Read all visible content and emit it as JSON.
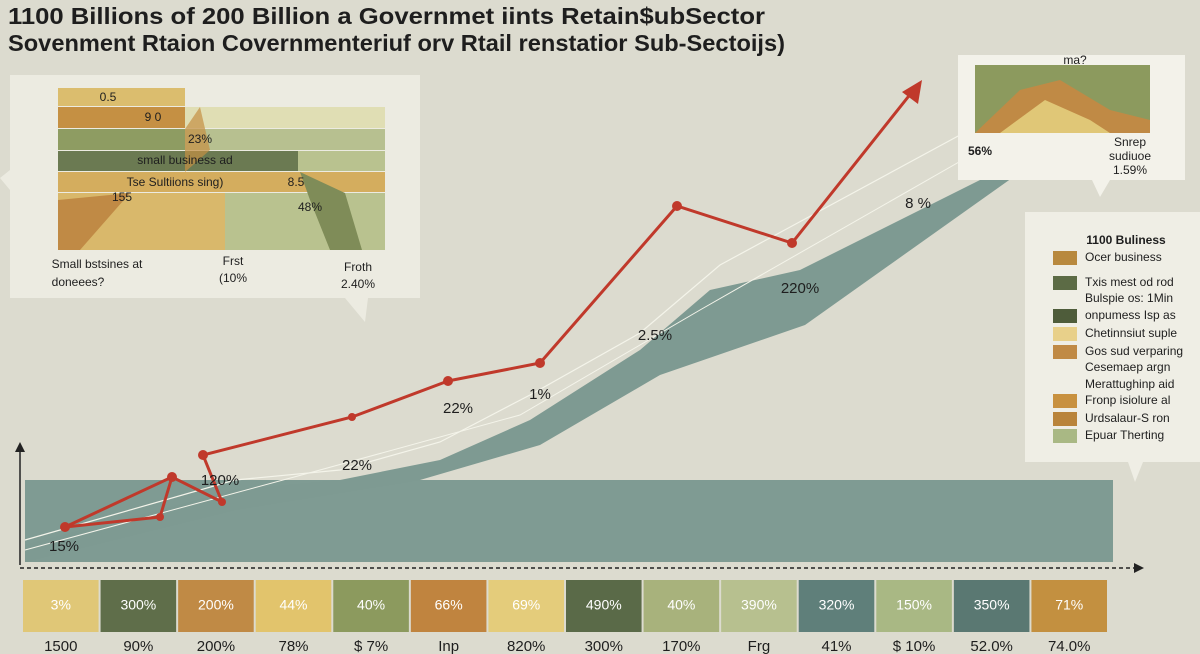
{
  "title": {
    "line1": "1100 Billions of 200 Billion a Governmet iints Retain$ubSector",
    "line2": "Sovenment Rtaion Covernmenteriuf orv Rtail renstatior Sub-Sectoijs)"
  },
  "left_panel": {
    "labels": [
      "0.5",
      "9 0",
      "23%",
      "small business ad",
      "Tse Sultiions sing)",
      "8.5",
      "155",
      "48%",
      "Small bstsines at",
      "doneees?",
      "Frst",
      "(10%",
      "Froth",
      "2.40%"
    ]
  },
  "right_panel": {
    "top": "ma?",
    "value": "56%",
    "notes": [
      "Snrep",
      "sudiuoe",
      "1.59%"
    ]
  },
  "chart_labels": [
    "8 %",
    "220%",
    "2.5%",
    "1%",
    "22%",
    "22%",
    "120%",
    "15%"
  ],
  "legend": {
    "title": "1100 Buliness",
    "items": [
      {
        "label": "Ocer business",
        "color": "#b8893e"
      },
      {
        "label": "Txis mest od rod",
        "color": "#5c6b45"
      },
      {
        "label": "Bulspie os: 1Min"
      },
      {
        "label": "onpumess Isp as",
        "color": "#4e5c3a"
      },
      {
        "label": "Chetinnsiut suple",
        "color": "#e8d08a"
      },
      {
        "label": "Gos sud verparing",
        "color": "#c08a45"
      },
      {
        "label": "Cesemaep argn"
      },
      {
        "label": "Merattughinp aid"
      },
      {
        "label": "Fronp isiolure al",
        "color": "#c8913f"
      },
      {
        "label": "Urdsalaur-S ron",
        "color": "#b9843a"
      },
      {
        "label": "Epuar Therting",
        "color": "#a9b884"
      }
    ]
  },
  "strip": {
    "cells": [
      {
        "label": "3%",
        "color": "#e0c777"
      },
      {
        "label": "300%",
        "color": "#5f6e4a"
      },
      {
        "label": "200%",
        "color": "#c08a45"
      },
      {
        "label": "44%",
        "color": "#e2c46c"
      },
      {
        "label": "40%",
        "color": "#8c9a5e"
      },
      {
        "label": "66%",
        "color": "#c0843f"
      },
      {
        "label": "69%",
        "color": "#e4cc7b"
      },
      {
        "label": "490%",
        "color": "#5a6a48"
      },
      {
        "label": "40%",
        "color": "#a8b27c"
      },
      {
        "label": "390%",
        "color": "#b7c08f"
      },
      {
        "label": "320%",
        "color": "#5f7f7a"
      },
      {
        "label": "150%",
        "color": "#a9b884"
      },
      {
        "label": "350%",
        "color": "#5a7872"
      },
      {
        "label": "71%",
        "color": "#c39040"
      }
    ],
    "footer": [
      "1500",
      "90%",
      "200%",
      "78%",
      "$ 7%",
      "Inp",
      "820%",
      "300%",
      "170%",
      "Frg",
      "41%",
      "$ 10%",
      "52.0%",
      "74.0%"
    ]
  }
}
